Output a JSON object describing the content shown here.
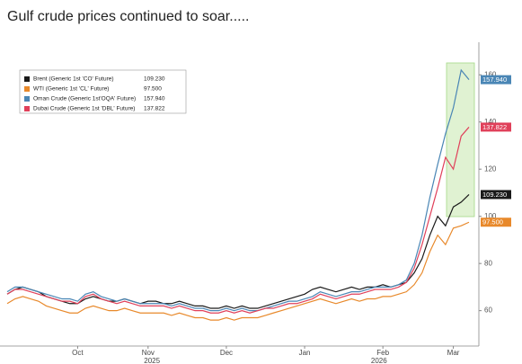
{
  "chart_data": {
    "type": "line",
    "title": "Gulf crude prices continued to soar.....",
    "categories": [
      null,
      null,
      null,
      null,
      null,
      null,
      null,
      null,
      null,
      "Oct",
      null,
      null,
      null,
      null,
      null,
      null,
      null,
      null,
      "Nov",
      null,
      null,
      null,
      null,
      null,
      null,
      null,
      null,
      null,
      "Dec",
      null,
      null,
      null,
      null,
      null,
      null,
      null,
      null,
      null,
      "Jan",
      null,
      null,
      null,
      null,
      null,
      null,
      null,
      null,
      null,
      "Feb",
      null,
      null,
      null,
      null,
      null,
      null,
      null,
      null,
      "Mar",
      null,
      null
    ],
    "x_groups": [
      {
        "label": "2025",
        "span": [
          9,
          28
        ]
      },
      {
        "label": "2026",
        "span": [
          38,
          57
        ]
      }
    ],
    "series": [
      {
        "name": "Brent (Generic 1st 'CO' Future)",
        "color": "#1a1a1a",
        "value_label": "109.230",
        "values": [
          67,
          69,
          70,
          69,
          68,
          66,
          65,
          64,
          63,
          63,
          65,
          66,
          65,
          64,
          64,
          65,
          64,
          63,
          64,
          64,
          63,
          63,
          64,
          63,
          62,
          62,
          61,
          61,
          62,
          61,
          62,
          61,
          61,
          62,
          63,
          64,
          65,
          66,
          67,
          69,
          70,
          69,
          68,
          69,
          70,
          69,
          70,
          70,
          71,
          70,
          71,
          72,
          76,
          82,
          92,
          100,
          96,
          104,
          106,
          109.23
        ]
      },
      {
        "name": "WTI (Generic 1st 'CL' Future)",
        "color": "#e8892b",
        "value_label": "97.500",
        "values": [
          63,
          65,
          66,
          65,
          64,
          62,
          61,
          60,
          59,
          59,
          61,
          62,
          61,
          60,
          60,
          61,
          60,
          59,
          59,
          59,
          59,
          58,
          59,
          58,
          57,
          57,
          56,
          56,
          57,
          56,
          57,
          57,
          57,
          58,
          59,
          60,
          61,
          62,
          63,
          64,
          65,
          64,
          63,
          64,
          65,
          64,
          65,
          65,
          66,
          66,
          67,
          68,
          71,
          76,
          85,
          92,
          88,
          95,
          96,
          97.5
        ]
      },
      {
        "name": "Oman Crude (Generic 1st'OQA' Future)",
        "color": "#4a86b5",
        "value_label": "157.940",
        "values": [
          68,
          70,
          70,
          69,
          68,
          67,
          66,
          65,
          65,
          64,
          67,
          68,
          66,
          65,
          64,
          65,
          64,
          63,
          63,
          63,
          63,
          62,
          63,
          62,
          61,
          61,
          60,
          60,
          61,
          60,
          61,
          60,
          60,
          61,
          62,
          63,
          64,
          64,
          65,
          66,
          68,
          67,
          66,
          67,
          68,
          68,
          69,
          70,
          70,
          70,
          71,
          73,
          80,
          92,
          108,
          122,
          135,
          146,
          162,
          157.94
        ]
      },
      {
        "name": "Dubai Crude (Generic 1st 'DBL' Future)",
        "color": "#e0405a",
        "value_label": "137.822",
        "values": [
          67,
          69,
          69,
          68,
          67,
          66,
          65,
          64,
          64,
          63,
          66,
          67,
          65,
          64,
          63,
          64,
          63,
          62,
          62,
          62,
          62,
          61,
          62,
          61,
          60,
          60,
          59,
          59,
          60,
          59,
          60,
          59,
          60,
          61,
          61,
          62,
          63,
          63,
          64,
          65,
          67,
          66,
          65,
          66,
          67,
          67,
          68,
          69,
          69,
          69,
          70,
          72,
          78,
          88,
          100,
          112,
          125,
          120,
          134,
          137.822
        ]
      }
    ],
    "ylim": [
      45,
      170
    ],
    "yticks": [
      60,
      80,
      100,
      120,
      140,
      160
    ],
    "y_axis_side": "right",
    "grid": false
  }
}
